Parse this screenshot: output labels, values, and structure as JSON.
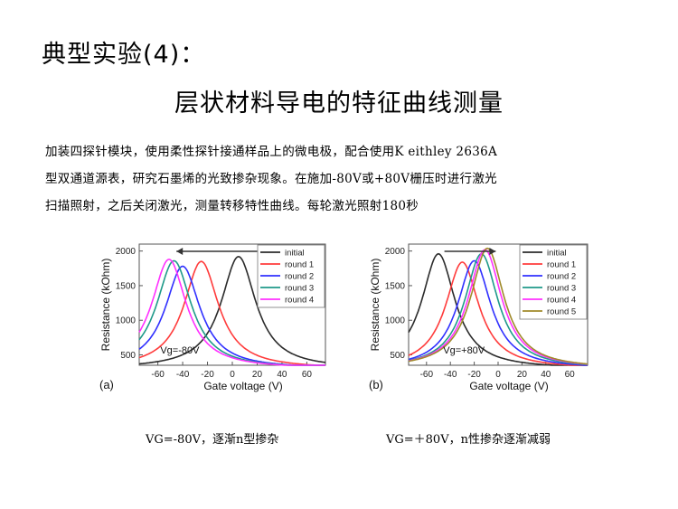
{
  "slide": {
    "title": "典型实验(4)：",
    "subtitle": "层状材料导电的特征曲线测量",
    "body_lines": [
      "加装四探针模块，使用柔性探针接通样品上的微电极，配合使用K eithley 2636A",
      "型双通道源表，研究石墨烯的光致掺杂现象。在施加-80V或+80V栅压时进行激光",
      "扫描照射，之后关闭激光，测量转移特性曲线。每轮激光照射180秒"
    ],
    "captions": [
      "VG=-80V，逐渐n型掺杂",
      "VG=＋80V，n性掺杂逐渐减弱"
    ]
  },
  "chart_data": [
    {
      "type": "line",
      "panel_label": "(a)",
      "xlabel": "Gate voltage (V)",
      "ylabel": "Resistance (kOhm)",
      "xlim": [
        -75,
        75
      ],
      "ylim": [
        350,
        2100
      ],
      "xticks": [
        -60,
        -40,
        -20,
        0,
        20,
        40,
        60
      ],
      "yticks": [
        500,
        1000,
        1500,
        2000
      ],
      "annotation": "Vg=-80V",
      "arrow_direction": "left",
      "legend_position": "top-right",
      "series": [
        {
          "name": "initial",
          "color": "#2b2b2b",
          "peak_x": 5,
          "peak_y": 1920
        },
        {
          "name": "round 1",
          "color": "#ff3b3b",
          "peak_x": -25,
          "peak_y": 1850
        },
        {
          "name": "round 2",
          "color": "#3030ff",
          "peak_x": -40,
          "peak_y": 1780
        },
        {
          "name": "round 3",
          "color": "#1f9a8a",
          "peak_x": -47,
          "peak_y": 1860
        },
        {
          "name": "round 4",
          "color": "#ff30ff",
          "peak_x": -51,
          "peak_y": 1880
        }
      ]
    },
    {
      "type": "line",
      "panel_label": "(b)",
      "xlabel": "Gate voltage (V)",
      "ylabel": "Resistance (kOhm)",
      "xlim": [
        -75,
        75
      ],
      "ylim": [
        350,
        2100
      ],
      "xticks": [
        -60,
        -40,
        -20,
        0,
        20,
        40,
        60
      ],
      "yticks": [
        500,
        1000,
        1500,
        2000
      ],
      "annotation": "Vg=+80V",
      "arrow_direction": "right",
      "legend_position": "top-right",
      "series": [
        {
          "name": "initial",
          "color": "#2b2b2b",
          "peak_x": -50,
          "peak_y": 1960
        },
        {
          "name": "round 1",
          "color": "#ff3b3b",
          "peak_x": -30,
          "peak_y": 1840
        },
        {
          "name": "round 2",
          "color": "#3030ff",
          "peak_x": -20,
          "peak_y": 1860
        },
        {
          "name": "round 3",
          "color": "#1f9a8a",
          "peak_x": -14,
          "peak_y": 1960
        },
        {
          "name": "round 4",
          "color": "#ff30ff",
          "peak_x": -11,
          "peak_y": 2020
        },
        {
          "name": "round 5",
          "color": "#a08a2a",
          "peak_x": -9,
          "peak_y": 2040
        }
      ]
    }
  ]
}
